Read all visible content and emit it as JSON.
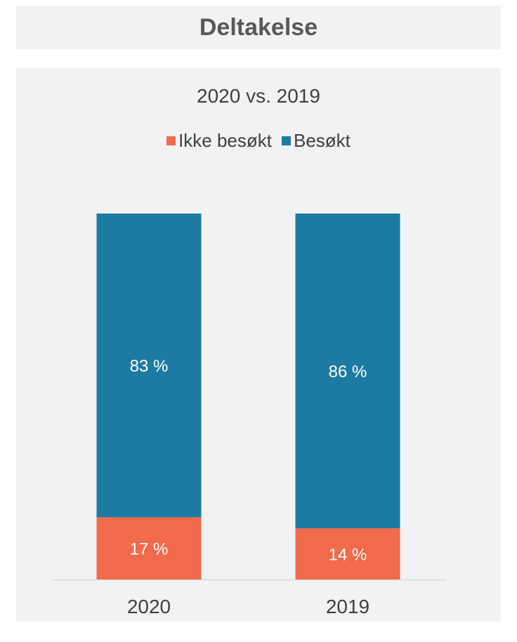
{
  "header": {
    "title": "Deltakelse"
  },
  "colors": {
    "ikke_besokt": "#f06a4b",
    "besokt": "#1d7ba3",
    "axis": "#d9d9d9",
    "panel_bg": "#f2f2f2"
  },
  "chart_data": {
    "type": "bar",
    "stacked": true,
    "percent_stacked": true,
    "title": "2020 vs. 2019",
    "xlabel": "",
    "ylabel": "",
    "categories": [
      "2020",
      "2019"
    ],
    "ylim": [
      0,
      100
    ],
    "grid": false,
    "legend_position": "top",
    "series": [
      {
        "name": "Ikke besøkt",
        "values": [
          17,
          14
        ],
        "labels": [
          "17 %",
          "14 %"
        ]
      },
      {
        "name": "Besøkt",
        "values": [
          83,
          86
        ],
        "labels": [
          "83 %",
          "86 %"
        ]
      }
    ]
  }
}
